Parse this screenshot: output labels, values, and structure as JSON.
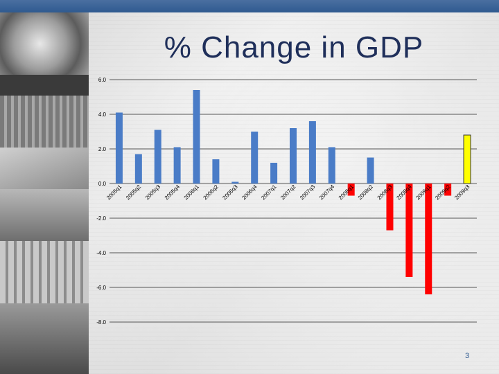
{
  "slide": {
    "title": "% Change in GDP",
    "slide_number": "3"
  },
  "colors": {
    "positive": "#4a7cc7",
    "negative": "#ff0000",
    "highlight": "#ffff00",
    "title": "#1f2f5a",
    "accent": "#2f5a90"
  },
  "chart_data": {
    "type": "bar",
    "title": "% Change in GDP",
    "xlabel": "",
    "ylabel": "",
    "ylim": [
      -8.0,
      6.0
    ],
    "yticks": [
      "6.0",
      "4.0",
      "2.0",
      "0.0",
      "-2.0",
      "-4.0",
      "-6.0",
      "-8.0"
    ],
    "grid": true,
    "legend": "none",
    "categories": [
      "2005q1",
      "2005q2",
      "2005q3",
      "2005q4",
      "2006q1",
      "2006q2",
      "2006q3",
      "2006q4",
      "2007q1",
      "2007q2",
      "2007q3",
      "2007q4",
      "2008q1",
      "2008q2",
      "2008q3",
      "2008q4",
      "2009q1",
      "2009q2",
      "2009q3"
    ],
    "values": [
      4.1,
      1.7,
      3.1,
      2.1,
      5.4,
      1.4,
      0.1,
      3.0,
      1.2,
      3.2,
      3.6,
      2.1,
      -0.7,
      1.5,
      -2.7,
      -5.4,
      -6.4,
      -0.7,
      2.8
    ],
    "highlight_index": 18
  }
}
